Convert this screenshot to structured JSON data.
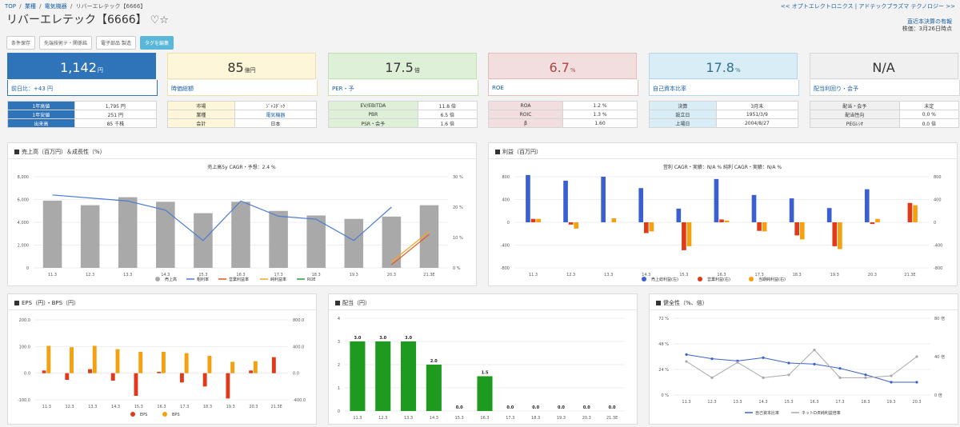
{
  "breadcrumb": {
    "top": "TOP",
    "sep": "/",
    "industry": "業種",
    "sector": "電気機器",
    "current": "リバーエレテック【6666】"
  },
  "nav": {
    "right_links": "<< オプトエレクトロニクス | アドテックプラズマ テクノロジー >>"
  },
  "company": {
    "title": "リバーエレテック【6666】",
    "fav_icons": "♡☆"
  },
  "notes": {
    "latest": "直近本決算の有報",
    "date": "株価：3月26日時点"
  },
  "buttons": [
    {
      "label": "条件保存"
    },
    {
      "label": "先端技術テ・関係銘"
    },
    {
      "label": "電子部品 製造"
    },
    {
      "label": "タグを編集"
    }
  ],
  "cards": [
    {
      "value": "1,142",
      "unit": "円",
      "label": "前日比：+43 円"
    },
    {
      "value": "85",
      "unit": "億円",
      "label": "時価総額"
    },
    {
      "value": "17.5",
      "unit": "倍",
      "label": "PER・予"
    },
    {
      "value": "6.7",
      "unit": "%",
      "label": "ROE"
    },
    {
      "value": "17.8",
      "unit": "%",
      "label": "自己資本比率"
    },
    {
      "value": "N/A",
      "unit": "",
      "label": "配当利回り・会予"
    }
  ],
  "colors": {
    "blue": "#2f73b8",
    "yellow": "#fdf6d8",
    "green": "#dff0d8",
    "red": "#f2dede",
    "cyan": "#d9edf7",
    "gray": "#f0f0f0"
  },
  "tables": [
    [
      [
        "1年高値",
        "1,795 円"
      ],
      [
        "1年安値",
        "251 円"
      ],
      [
        "出来高",
        "85 千株"
      ]
    ],
    [
      [
        "市場",
        "ｼﾞｬｽﾀﾞｯｸ"
      ],
      [
        "業種",
        "電気機器"
      ],
      [
        "会計",
        "日本"
      ]
    ],
    [
      [
        "EV/EBITDA",
        "11.8 倍"
      ],
      [
        "PBR",
        "6.5 倍"
      ],
      [
        "PSR・会予",
        "1.6 倍"
      ]
    ],
    [
      [
        "ROA",
        "1.2 %"
      ],
      [
        "ROIC",
        "1.3 %"
      ],
      [
        "β",
        "1.60"
      ]
    ],
    [
      [
        "決算",
        "3月末"
      ],
      [
        "設立日",
        "1951/3/9"
      ],
      [
        "上場日",
        "2004/8/27"
      ]
    ],
    [
      [
        "配当・会予",
        "未定"
      ],
      [
        "配当性向",
        "0.0 %"
      ],
      [
        "PEGﾚｼｵ",
        "0.0 倍"
      ]
    ]
  ],
  "panels": {
    "sales": "売上高（百万円）＆成長性（%）",
    "profit": "利益（百万円）",
    "eps": "EPS（円）・BPS（円）",
    "div": "配当（円）",
    "health": "健全性（%、倍）"
  },
  "chart_data": [
    {
      "type": "bar",
      "title": "売上高5y CAGR・予想：2.4 %",
      "categories": [
        "11.3",
        "12.3",
        "13.3",
        "14.3",
        "15.3",
        "16.3",
        "17.3",
        "18.3",
        "19.3",
        "20.3",
        "21.3E"
      ],
      "ylim": [
        0,
        8000
      ],
      "y2lim": [
        0,
        30
      ],
      "yticks": [
        "0",
        "2,000",
        "4,000",
        "6,000",
        "8,000"
      ],
      "y2ticks": [
        "0 %",
        "10 %",
        "20 %",
        "30 %"
      ],
      "series": [
        {
          "name": "売上高",
          "values": [
            5900,
            5500,
            6200,
            5800,
            4800,
            5800,
            5000,
            4600,
            4300,
            4500,
            5500
          ]
        },
        {
          "name": "粗利率",
          "values": [
            24,
            23,
            22,
            19,
            9,
            22,
            17,
            16,
            9,
            20,
            null
          ]
        },
        {
          "name": "営業利益率",
          "values": [
            null,
            null,
            null,
            null,
            null,
            null,
            null,
            null,
            null,
            1,
            11
          ]
        },
        {
          "name": "純利益率",
          "values": [
            null,
            null,
            null,
            null,
            null,
            null,
            null,
            null,
            null,
            2,
            12
          ]
        },
        {
          "name": "ROE",
          "values": [
            null,
            null,
            null,
            null,
            null,
            null,
            null,
            null,
            null,
            null,
            null
          ]
        }
      ]
    },
    {
      "type": "bar",
      "title": "営利 CAGR・実績：N/A %  純利 CAGR・実績：N/A %",
      "categories": [
        "11.3",
        "12.3",
        "13.3",
        "14.3",
        "15.3",
        "16.3",
        "17.3",
        "18.3",
        "19.3",
        "20.3",
        "21.3E"
      ],
      "ylim": [
        -800,
        800
      ],
      "yticks": [
        "-800",
        "-400",
        "0",
        "400",
        "800"
      ],
      "series": [
        {
          "name": "売上総利益(左)",
          "values": [
            830,
            730,
            800,
            600,
            240,
            760,
            480,
            420,
            250,
            580,
            0
          ]
        },
        {
          "name": "営業利益(右)",
          "values": [
            60,
            -40,
            0,
            -190,
            -490,
            50,
            -150,
            -230,
            -420,
            -30,
            340
          ]
        },
        {
          "name": "当期純利益(右)",
          "values": [
            60,
            -110,
            70,
            -160,
            -420,
            30,
            -160,
            -300,
            -470,
            60,
            300
          ]
        }
      ]
    },
    {
      "type": "bar",
      "categories": [
        "11.3",
        "12.3",
        "13.3",
        "14.3",
        "15.3",
        "16.3",
        "17.3",
        "18.3",
        "19.3",
        "20.3",
        "21.3E"
      ],
      "ylim": [
        -100,
        200
      ],
      "y2lim": [
        -400,
        800
      ],
      "yticks": [
        "-100.0",
        "0.0",
        "100.0",
        "200.0"
      ],
      "y2ticks": [
        "-400.0",
        "0.0",
        "400.0",
        "800.0"
      ],
      "series": [
        {
          "name": "EPS",
          "values": [
            10,
            -25,
            15,
            -28,
            -85,
            5,
            -35,
            -50,
            -95,
            10,
            60
          ]
        },
        {
          "name": "BPS",
          "values": [
            410,
            390,
            410,
            360,
            320,
            320,
            300,
            260,
            170,
            180,
            0
          ]
        }
      ]
    },
    {
      "type": "bar",
      "categories": [
        "11.3",
        "12.3",
        "13.3",
        "14.3",
        "15.3",
        "16.3",
        "17.3",
        "18.3",
        "19.3",
        "20.3",
        "21.3E"
      ],
      "ylim": [
        0,
        4
      ],
      "yticks": [
        "0",
        "1",
        "2",
        "3",
        "4"
      ],
      "values": [
        3.0,
        3.0,
        3.0,
        2.0,
        0.0,
        1.5,
        0.0,
        0.0,
        0.0,
        0.0,
        0.0
      ],
      "labels": [
        "3.0",
        "3.0",
        "3.0",
        "2.0",
        "0.0",
        "1.5",
        "0.0",
        "0.0",
        "0.0",
        "0.0",
        "0.0"
      ]
    },
    {
      "type": "line",
      "categories": [
        "11.3",
        "12.3",
        "13.3",
        "14.3",
        "15.3",
        "16.3",
        "17.3",
        "18.3",
        "19.3",
        "20.3"
      ],
      "ylim": [
        0,
        72
      ],
      "y2lim": [
        0,
        80
      ],
      "yticks": [
        "0 %",
        "24 %",
        "48 %",
        "72 %"
      ],
      "y2ticks": [
        "0 倍",
        "40 倍",
        "80 倍"
      ],
      "series": [
        {
          "name": "自己資本比率",
          "values": [
            38,
            34,
            32,
            35,
            30,
            29,
            25,
            19,
            12,
            12
          ]
        },
        {
          "name": "ネットD/E純利益倍率",
          "values": [
            35,
            18,
            34,
            18,
            21,
            47,
            18,
            18,
            20,
            40
          ]
        }
      ]
    }
  ]
}
